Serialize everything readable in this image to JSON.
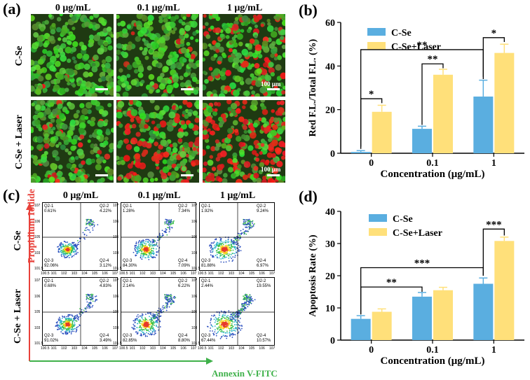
{
  "panels": {
    "a": "(a)",
    "b": "(b)",
    "c": "(c)",
    "d": "(d)"
  },
  "micro": {
    "columns": [
      "0 μg/mL",
      "0.1 μg/mL",
      "1 μg/mL"
    ],
    "rows": [
      "C-Se",
      "C-Se + Laser"
    ],
    "scalebar": "100 μm"
  },
  "flow": {
    "columns": [
      "0 μg/mL",
      "0.1 μg/mL",
      "1 μg/mL"
    ],
    "rows": [
      "C-Se",
      "C-Se + Laser"
    ],
    "ylabel": "Propidium Iodide",
    "xlabel": "Annexin V-FITC",
    "yticks": [
      "10^7",
      "10^6",
      "10^5",
      "10^3",
      "10^1.5"
    ],
    "xticks": [
      "10^0.5",
      "10^1",
      "10^2",
      "10^3",
      "10^4",
      "10^5",
      "10^6",
      "10^7"
    ],
    "plots": [
      [
        {
          "q21": "Q2-1",
          "v21": "0.61%",
          "q22": "Q2-2",
          "v22": "4.22%",
          "q23": "Q2-3",
          "v23": "92.06%",
          "q24": "Q2-4",
          "v24": "3.12%"
        },
        {
          "q21": "Q2-1",
          "v21": "1.28%",
          "q22": "Q2-2",
          "v22": "7.34%",
          "q23": "Q2-3",
          "v23": "84.30%",
          "q24": "Q2-4",
          "v24": "7.09%"
        },
        {
          "q21": "Q2-1",
          "v21": "1.92%",
          "q22": "Q2-2",
          "v22": "9.24%",
          "q23": "Q2-3",
          "v23": "81.88%",
          "q24": "Q2-4",
          "v24": "6.97%"
        }
      ],
      [
        {
          "q21": "Q2-1",
          "v21": "0.68%",
          "q22": "Q2-2",
          "v22": "4.83%",
          "q23": "Q2-3",
          "v23": "91.02%",
          "q24": "Q2-4",
          "v24": "3.49%"
        },
        {
          "q21": "Q2-1",
          "v21": "2.14%",
          "q22": "Q2-2",
          "v22": "6.22%",
          "q23": "Q2-3",
          "v23": "82.85%",
          "q24": "Q2-4",
          "v24": "8.80%"
        },
        {
          "q21": "Q2-1",
          "v21": "2.44%",
          "q22": "Q2-2",
          "v22": "19.55%",
          "q23": "Q2-3",
          "v23": "67.44%",
          "q24": "Q2-4",
          "v24": "10.57%"
        }
      ]
    ]
  },
  "colors": {
    "cse": "#5aaee0",
    "laser": "#ffe07a",
    "red_axis": "#e8413a",
    "green_axis": "#3fb14a"
  },
  "chart_data": [
    {
      "type": "bar",
      "categories": [
        "0",
        "0.1",
        "1"
      ],
      "series": [
        {
          "name": "C-Se",
          "values": [
            0.6,
            11.2,
            26.0
          ],
          "errors": [
            0.6,
            1.2,
            7.5
          ]
        },
        {
          "name": "C-Se+Laser",
          "values": [
            19.0,
            36.0,
            46.0
          ],
          "errors": [
            3.0,
            2.5,
            4.0
          ]
        }
      ],
      "xlabel": "Concentration (μg/mL)",
      "ylabel": "Red F.L./Total F.L. (%)",
      "ylim": [
        0,
        60
      ],
      "yticks": [
        "0",
        "20",
        "40",
        "60"
      ],
      "legend_position": "top-left",
      "significance": [
        "*",
        "**",
        "*",
        "**"
      ]
    },
    {
      "type": "bar",
      "categories": [
        "0",
        "0.1",
        "1"
      ],
      "series": [
        {
          "name": "C-Se",
          "values": [
            6.6,
            13.5,
            17.5
          ],
          "errors": [
            1.0,
            1.3,
            1.8
          ]
        },
        {
          "name": "C-Se+Laser",
          "values": [
            8.8,
            15.5,
            30.8
          ],
          "errors": [
            0.9,
            0.9,
            1.2
          ]
        }
      ],
      "xlabel": "Concentration (μg/mL)",
      "ylabel": "Apoptosis Rate (%)",
      "ylim": [
        0,
        40
      ],
      "yticks": [
        "0",
        "10",
        "20",
        "30",
        "40"
      ],
      "legend_position": "top-left",
      "significance": [
        "**",
        "***",
        "***"
      ]
    }
  ]
}
